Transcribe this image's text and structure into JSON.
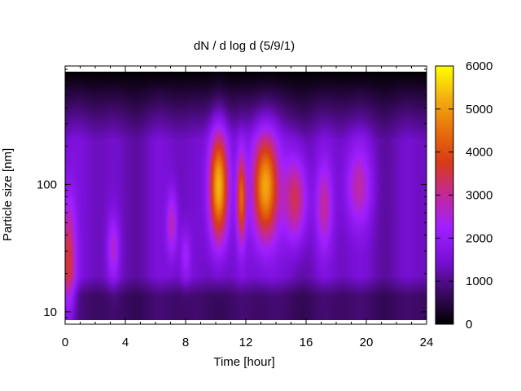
{
  "chart_data": {
    "type": "heatmap",
    "title": "dN / d log d (5/9/1)",
    "xlabel": "Time [hour]",
    "ylabel": "Particle size [nm]",
    "xlim": [
      0,
      24
    ],
    "x_ticks": [
      0,
      4,
      8,
      12,
      16,
      20,
      24
    ],
    "x_tick_labels": [
      "0",
      "4",
      "8",
      "12",
      "16",
      "20",
      "24"
    ],
    "y_scale": "log",
    "ylim": [
      8,
      850
    ],
    "y_ticks": [
      10,
      100
    ],
    "y_tick_labels": [
      "10",
      "100"
    ],
    "colorbar": {
      "range": [
        0,
        6000
      ],
      "ticks": [
        0,
        1000,
        2000,
        3000,
        4000,
        5000,
        6000
      ],
      "tick_labels": [
        "0",
        "1000",
        "2000",
        "3000",
        "4000",
        "5000",
        "6000"
      ],
      "palette": [
        "#000000",
        "#3d0a66",
        "#7a10d8",
        "#a020ff",
        "#c3289a",
        "#d83a18",
        "#e8700a",
        "#f2b010",
        "#ffff00"
      ]
    },
    "background_level": 1600,
    "blobs": [
      {
        "t": 0.2,
        "d": 25,
        "amp": 2200,
        "st": 0.35,
        "sd": 0.35
      },
      {
        "t": 3.2,
        "d": 32,
        "amp": 1200,
        "st": 0.28,
        "sd": 0.18
      },
      {
        "t": 7.1,
        "d": 50,
        "amp": 1400,
        "st": 0.25,
        "sd": 0.18
      },
      {
        "t": 8.0,
        "d": 28,
        "amp": 900,
        "st": 0.25,
        "sd": 0.15
      },
      {
        "t": 10.2,
        "d": 100,
        "amp": 4200,
        "st": 0.45,
        "sd": 0.32
      },
      {
        "t": 11.7,
        "d": 80,
        "amp": 2800,
        "st": 0.22,
        "sd": 0.25
      },
      {
        "t": 13.3,
        "d": 100,
        "amp": 3800,
        "st": 0.6,
        "sd": 0.3
      },
      {
        "t": 15.3,
        "d": 80,
        "amp": 2200,
        "st": 0.55,
        "sd": 0.25
      },
      {
        "t": 17.2,
        "d": 70,
        "amp": 1500,
        "st": 0.4,
        "sd": 0.25
      },
      {
        "t": 19.5,
        "d": 100,
        "amp": 1400,
        "st": 0.6,
        "sd": 0.22
      }
    ]
  }
}
